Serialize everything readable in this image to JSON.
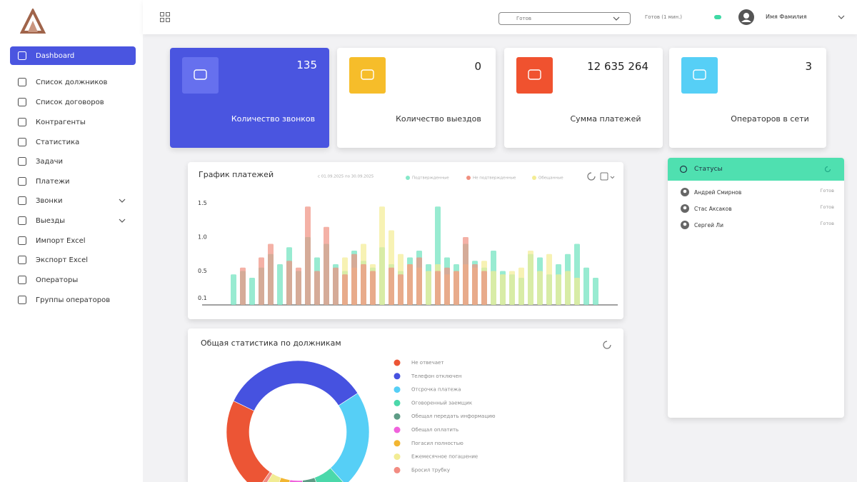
{
  "sidebar": {
    "menu": [
      "Dashboard",
      "Список должников",
      "Список договоров",
      "Контрагенты",
      "Статистика",
      "Задачи",
      "Платежи",
      "Звонки",
      "Выезды",
      "Импорт Excel",
      "Экспорт Excel",
      "Операторы",
      "Группы операторов"
    ]
  },
  "header": {
    "status": "Готов",
    "status_time": "Готов (1 мин.)",
    "user": "Имя Фамилия"
  },
  "cards": [
    {
      "value": "135",
      "label": "Количество звонков"
    },
    {
      "value": "0",
      "label": "Количество выездов"
    },
    {
      "value": "12 635 264",
      "label": "Сумма платежей"
    },
    {
      "value": "3",
      "label": "Операторов в сети"
    }
  ],
  "statuses": {
    "title": "Статусы",
    "operators": [
      {
        "name": "Андрей Смирнов",
        "status": "Готов"
      },
      {
        "name": "Стас Аксаков",
        "status": "Готов"
      },
      {
        "name": "Сергей Ли",
        "status": "Готов"
      }
    ]
  },
  "chart_data": [
    {
      "type": "bar",
      "title": "График платежей",
      "subtitle": "с 01.09.2025 по 30.09.2025",
      "ylim": [
        0,
        1.6
      ],
      "yticks": [
        0.1,
        0.5,
        {
          "value": 1,
          "label": "1.0"
        },
        1.5
      ],
      "series": [
        {
          "name": "Подтвержденные",
          "color": "#86e8c9",
          "values": [
            0.45,
            0.5,
            0.4,
            0.55,
            0.75,
            0.6,
            0.85,
            0.5,
            1.0,
            0.7,
            0.9,
            0.6,
            0.5,
            0.8,
            0.65,
            0.55,
            0.85,
            0.6,
            0.5,
            0.7,
            0.8,
            0.6,
            1.45,
            0.7,
            0.6,
            0.9,
            0.65,
            0.55,
            0.8,
            0.5,
            0.45,
            0.4,
            0.75,
            0.7,
            0.45,
            0.6,
            0.75,
            0.9,
            0.55,
            0.4
          ]
        },
        {
          "name": "Не подтвержденные",
          "color": "#f09080",
          "values": [
            null,
            0.55,
            null,
            0.7,
            0.9,
            null,
            0.65,
            0.55,
            1.45,
            0.5,
            1.15,
            0.55,
            0.45,
            0.75,
            0.6,
            0.5,
            null,
            0.55,
            0.45,
            0.6,
            0.7,
            null,
            0.5,
            0.55,
            0.5,
            1.0,
            0.6,
            0.5,
            null,
            null,
            null,
            null,
            null,
            null,
            null,
            null,
            null,
            null,
            null,
            null
          ]
        },
        {
          "name": "Обещанные",
          "color": "#f3ec94",
          "values": [
            null,
            null,
            null,
            null,
            null,
            null,
            null,
            null,
            null,
            null,
            null,
            null,
            0.7,
            0.55,
            0.9,
            0.6,
            1.45,
            1.1,
            0.75,
            0.6,
            0.55,
            0.5,
            0.6,
            0.45,
            0.5,
            0.6,
            0.55,
            0.65,
            0.5,
            0.45,
            0.5,
            0.55,
            0.8,
            0.5,
            0.75,
            0.45,
            0.5,
            0.4,
            null,
            null
          ]
        }
      ]
    },
    {
      "type": "pie",
      "title": "Общая статистика по должникам",
      "categories": [
        "Не отвечает",
        "Телефон отключен",
        "Отсрочка платежа",
        "Оговоренный заемщик",
        "Обещал передать информацию",
        "Обещал оплатить",
        "Погасил полностью",
        "Ежемесячное погашение",
        "Бросил трубку"
      ],
      "values": [
        22,
        33,
        22,
        6,
        4,
        4,
        3,
        3,
        1
      ],
      "colors": [
        "#ec5535",
        "#4652e0",
        "#56cff6",
        "#4bd8aa",
        "#5e9c86",
        "#f062dc",
        "#f2b631",
        "#f2ec94",
        "#f28c82"
      ]
    }
  ]
}
